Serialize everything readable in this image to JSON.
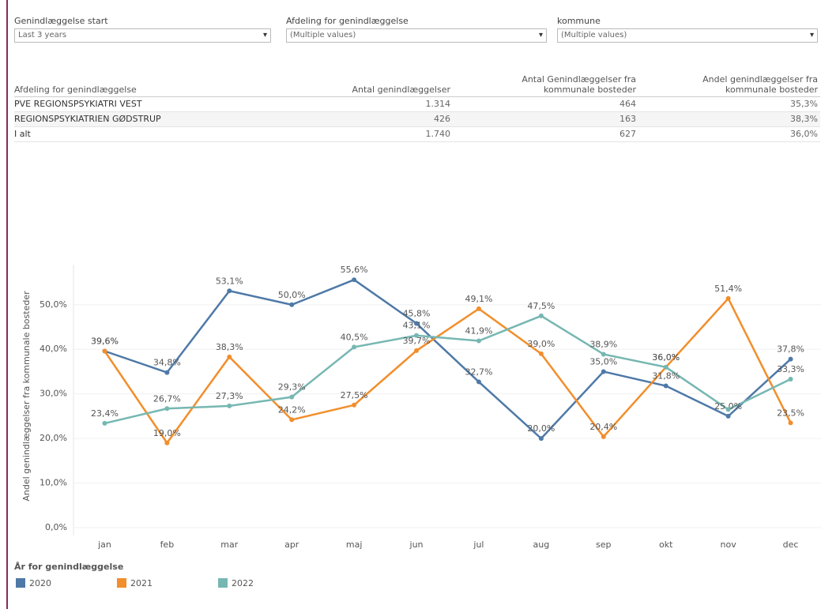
{
  "filters": [
    {
      "label": "Genindlæggelse start",
      "value": "Last 3 years"
    },
    {
      "label": "Afdeling for genindlæggelse",
      "value": "(Multiple values)"
    },
    {
      "label": "kommune",
      "value": "(Multiple values)"
    }
  ],
  "table": {
    "headers": [
      "Afdeling for genindlæggelse",
      "Antal genindlæggelser",
      "Antal Genindlæggelser fra kommunale bosteder",
      "Andel genindlæggelser fra kommunale bosteder"
    ],
    "rows": [
      [
        "PVE REGIONSPSYKIATRI VEST",
        "1.314",
        "464",
        "35,3%"
      ],
      [
        "REGIONSPSYKIATRIEN GØDSTRUP",
        "426",
        "163",
        "38,3%"
      ],
      [
        "I alt",
        "1.740",
        "627",
        "36,0%"
      ]
    ]
  },
  "chart_data": {
    "type": "line",
    "y_label": "Andel genindlæggelser fra kommunale bosteder",
    "legend_title": "År for genindlæggelse",
    "categories": [
      "jan",
      "feb",
      "mar",
      "apr",
      "maj",
      "jun",
      "jul",
      "aug",
      "sep",
      "okt",
      "nov",
      "dec"
    ],
    "series": [
      {
        "name": "2020",
        "color": "#4e79a7",
        "values": [
          39.6,
          34.8,
          53.1,
          50.0,
          55.6,
          45.8,
          32.7,
          20.0,
          35.0,
          31.8,
          25.0,
          37.8
        ],
        "value_labels": [
          "39,6%",
          "34,8%",
          "53,1%",
          "50,0%",
          "55,6%",
          "45,8%",
          "32,7%",
          "20,0%",
          "35,0%",
          "31,8%",
          "25,0%",
          "37,8%"
        ]
      },
      {
        "name": "2021",
        "color": "#f28e2b",
        "values": [
          39.6,
          19.0,
          38.3,
          24.2,
          27.5,
          39.7,
          49.1,
          39.0,
          20.4,
          36.0,
          51.4,
          23.5
        ],
        "value_labels": [
          "39,6%",
          "19,0%",
          "38,3%",
          "24,2%",
          "27,5%",
          "39,7%",
          "49,1%",
          "39,0%",
          "20,4%",
          "36,0%",
          "51,4%",
          "23,5%"
        ]
      },
      {
        "name": "2022",
        "color": "#76b7b2",
        "values": [
          23.4,
          26.7,
          27.3,
          29.3,
          40.5,
          43.1,
          41.9,
          47.5,
          38.9,
          36.0,
          26.5,
          33.3
        ],
        "value_labels": [
          "23,4%",
          "26,7%",
          "27,3%",
          "29,3%",
          "40,5%",
          "43,1%",
          "41,9%",
          "47,5%",
          "38,9%",
          "36,0%",
          null,
          "33,3%"
        ]
      }
    ],
    "ylim": [
      0,
      59
    ],
    "yticks": [
      {
        "value": 0,
        "label": "0,0%"
      },
      {
        "value": 10,
        "label": "10,0%"
      },
      {
        "value": 20,
        "label": "20,0%"
      },
      {
        "value": 30,
        "label": "30,0%"
      },
      {
        "value": 40,
        "label": "40,0%"
      },
      {
        "value": 50,
        "label": "50,0%"
      }
    ],
    "grid": true
  }
}
